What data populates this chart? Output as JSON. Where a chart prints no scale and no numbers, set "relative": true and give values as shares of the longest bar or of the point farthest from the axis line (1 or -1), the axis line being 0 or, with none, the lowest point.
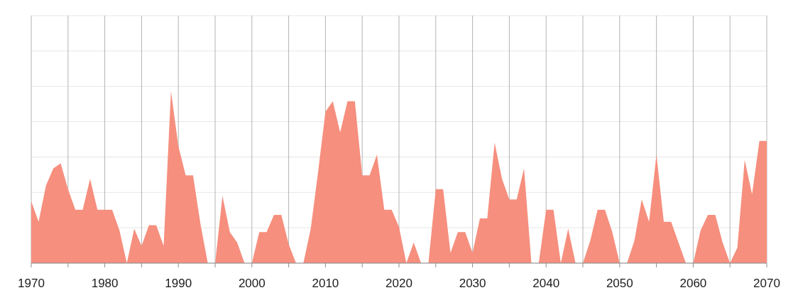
{
  "chart_data": {
    "type": "area",
    "relative": true,
    "color": "#f68f7e",
    "grid": true,
    "xlim": [
      1970,
      2070
    ],
    "xticks": [
      1970,
      {
        "value": 1975,
        "label": null
      },
      1980,
      {
        "value": 1985,
        "label": null
      },
      1990,
      {
        "value": 1995,
        "label": null
      },
      2000,
      {
        "value": 2005,
        "label": null
      },
      2010,
      {
        "value": 2015,
        "label": null
      },
      2020,
      {
        "value": 2025,
        "label": null
      },
      2030,
      {
        "value": 2035,
        "label": null
      },
      2040,
      {
        "value": 2045,
        "label": null
      },
      2050,
      {
        "value": 2055,
        "label": null
      },
      2060,
      {
        "value": 2065,
        "label": null
      },
      2070
    ],
    "x": [
      1970,
      1971,
      1972,
      1973,
      1974,
      1975,
      1976,
      1977,
      1978,
      1979,
      1980,
      1981,
      1982,
      1983,
      1984,
      1985,
      1986,
      1987,
      1988,
      1989,
      1990,
      1991,
      1992,
      1993,
      1994,
      1995,
      1996,
      1997,
      1998,
      1999,
      2000,
      2001,
      2002,
      2003,
      2004,
      2005,
      2006,
      2007,
      2008,
      2009,
      2010,
      2011,
      2012,
      2013,
      2014,
      2015,
      2016,
      2017,
      2018,
      2019,
      2020,
      2021,
      2022,
      2023,
      2024,
      2025,
      2026,
      2027,
      2028,
      2029,
      2030,
      2031,
      2032,
      2033,
      2034,
      2035,
      2036,
      2037,
      2038,
      2039,
      2040,
      2041,
      2042,
      2043,
      2044,
      2045,
      2046,
      2047,
      2048,
      2049,
      2050,
      2051,
      2052,
      2053,
      2054,
      2055,
      2056,
      2057,
      2058,
      2059,
      2060,
      2061,
      2062,
      2063,
      2064,
      2065,
      2066,
      2067,
      2068,
      2069,
      2070
    ],
    "values": [
      0.36,
      0.24,
      0.45,
      0.55,
      0.58,
      0.43,
      0.31,
      0.31,
      0.49,
      0.31,
      0.31,
      0.31,
      0.19,
      0,
      0.2,
      0.1,
      0.22,
      0.22,
      0.1,
      1,
      0.68,
      0.51,
      0.51,
      0.23,
      0,
      0,
      0.39,
      0.18,
      0.12,
      0,
      0,
      0.18,
      0.18,
      0.28,
      0.28,
      0.11,
      0,
      0,
      0.2,
      0.53,
      0.88,
      0.94,
      0.76,
      0.94,
      0.94,
      0.51,
      0.51,
      0.63,
      0.31,
      0.31,
      0.21,
      0,
      0.12,
      0,
      0,
      0.43,
      0.43,
      0.06,
      0.18,
      0.18,
      0.06,
      0.26,
      0.26,
      0.7,
      0.49,
      0.37,
      0.37,
      0.55,
      0,
      0,
      0.31,
      0.31,
      0,
      0.2,
      0,
      0,
      0.13,
      0.31,
      0.31,
      0.18,
      0,
      0,
      0.13,
      0.37,
      0.24,
      0.63,
      0.24,
      0.24,
      0.12,
      0,
      0,
      0.19,
      0.28,
      0.28,
      0.12,
      0,
      0.09,
      0.6,
      0.4,
      0.71,
      0.71
    ]
  }
}
